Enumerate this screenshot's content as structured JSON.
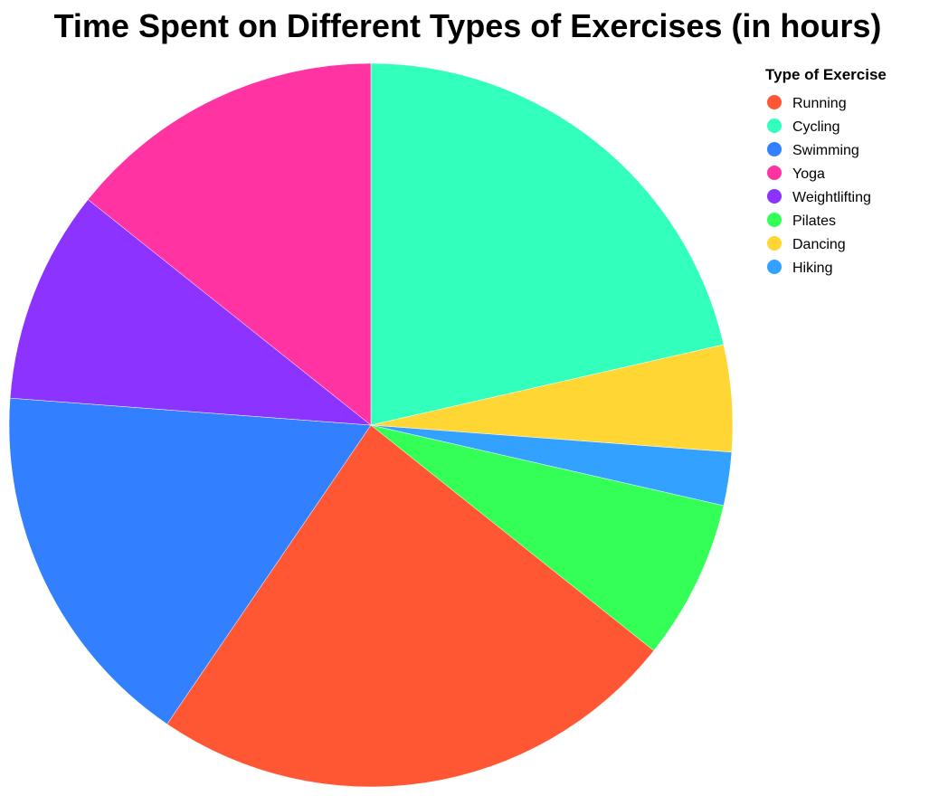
{
  "chart_data": {
    "type": "pie",
    "title": "Time Spent on Different Types of Exercises (in hours)",
    "legend_title": "Type of Exercise",
    "legend_position": "top-right",
    "categories": [
      "Running",
      "Cycling",
      "Swimming",
      "Yoga",
      "Weightlifting",
      "Pilates",
      "Dancing",
      "Hiking"
    ],
    "values": [
      10,
      9,
      7,
      6,
      4,
      3,
      2,
      1
    ],
    "colors": [
      "#ff5733",
      "#33ffbd",
      "#3380ff",
      "#ff33a1",
      "#8c33ff",
      "#33ff57",
      "#ffd633",
      "#33a1ff"
    ],
    "draw_order": [
      "Cycling",
      "Dancing",
      "Hiking",
      "Pilates",
      "Running",
      "Swimming",
      "Weightlifting",
      "Yoga"
    ]
  }
}
